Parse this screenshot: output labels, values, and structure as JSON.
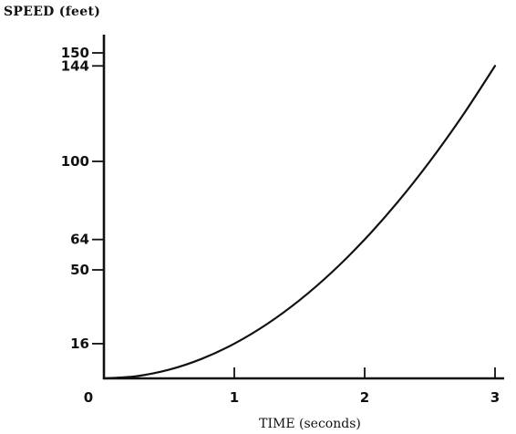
{
  "chart_data": {
    "type": "line",
    "xlabel": "TIME (seconds)",
    "ylabel": "SPEED (feet)",
    "xlim": [
      0,
      3
    ],
    "ylim": [
      0,
      150
    ],
    "x_ticks": [
      0,
      1,
      2,
      3
    ],
    "x_tick_labels": [
      "0",
      "1",
      "2",
      "3"
    ],
    "y_ticks": [
      16,
      50,
      64,
      100,
      144,
      150
    ],
    "y_tick_labels": [
      "16",
      "50",
      "64",
      "100",
      "144",
      "150"
    ],
    "grid": false,
    "series": [
      {
        "x": [
          0,
          0.25,
          0.5,
          0.75,
          1,
          1.25,
          1.5,
          1.75,
          2,
          2.25,
          2.5,
          2.75,
          3
        ],
        "values": [
          0,
          1,
          4,
          9,
          16,
          25,
          36,
          49,
          64,
          81,
          100,
          121,
          144
        ],
        "color": "#111111"
      }
    ]
  }
}
